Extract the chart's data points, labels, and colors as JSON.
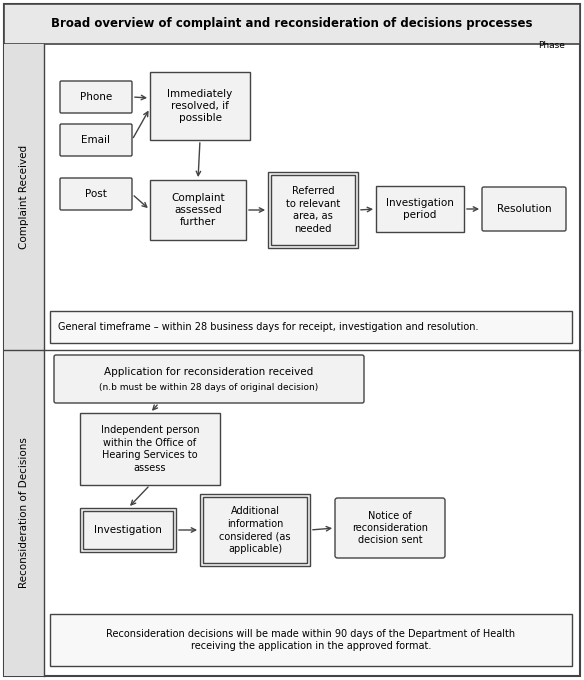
{
  "title": "Broad overview of complaint and reconsideration of decisions processes",
  "phase_label": "Phase",
  "section1_label": "Complaint Received",
  "section2_label": "Reconsideration of Decisions",
  "note1": "General timeframe – within 28 business days for receipt, investigation and resolution.",
  "note2": "Reconsideration decisions will be made within 90 days of the Department of Health\nreceiving the application in the approved format.",
  "bg_color": "#ffffff",
  "border_color": "#444444",
  "box_fill": "#f2f2f2",
  "box_fill_light": "#f8f8f8",
  "section_bg": "#e0e0e0"
}
